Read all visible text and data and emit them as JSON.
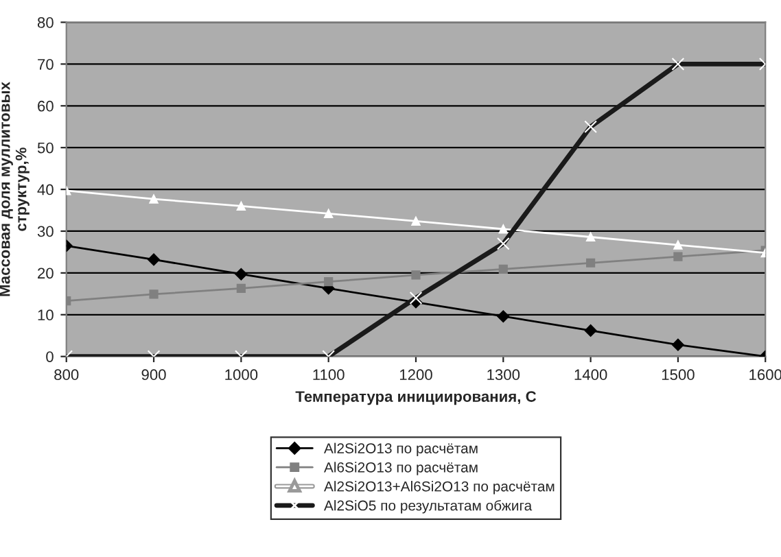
{
  "chart_data": {
    "type": "line",
    "xlabel": "Температура инициирования, С",
    "ylabel": "Массовая доля муллитовых\nструктур,%",
    "categories": [
      "800",
      "900",
      "1000",
      "1100",
      "1200",
      "1300",
      "1400",
      "1500",
      "1600"
    ],
    "series": [
      {
        "name": "Al2Si2O13 по расчётам",
        "color": "#000000",
        "marker": "diamond",
        "values": [
          26.5,
          23.2,
          19.7,
          16.3,
          13,
          9.6,
          6.2,
          2.8,
          0
        ]
      },
      {
        "name": "Al6Si2O13 по расчётам",
        "color": "#808080",
        "marker": "square",
        "values": [
          13.3,
          14.9,
          16.3,
          17.9,
          19.5,
          20.9,
          22.4,
          23.9,
          25.4
        ]
      },
      {
        "name": "Al2Si2O13+Al6Si2O13 по расчётам",
        "color": "#ffffff",
        "marker": "triangle",
        "values": [
          39.7,
          37.7,
          36,
          34.2,
          32.4,
          30.5,
          28.6,
          26.7,
          24.8
        ]
      },
      {
        "name": "Al2SiO5 по результатам обжига",
        "color": "#1a1a1a",
        "marker": "cross",
        "values": [
          0,
          0,
          0,
          0,
          14,
          27,
          55,
          70,
          70
        ]
      }
    ],
    "ylim": [
      0,
      80
    ],
    "yticks": [
      0,
      10,
      20,
      30,
      40,
      50,
      60,
      70,
      80
    ],
    "grid": "y",
    "legend": "bottom"
  }
}
